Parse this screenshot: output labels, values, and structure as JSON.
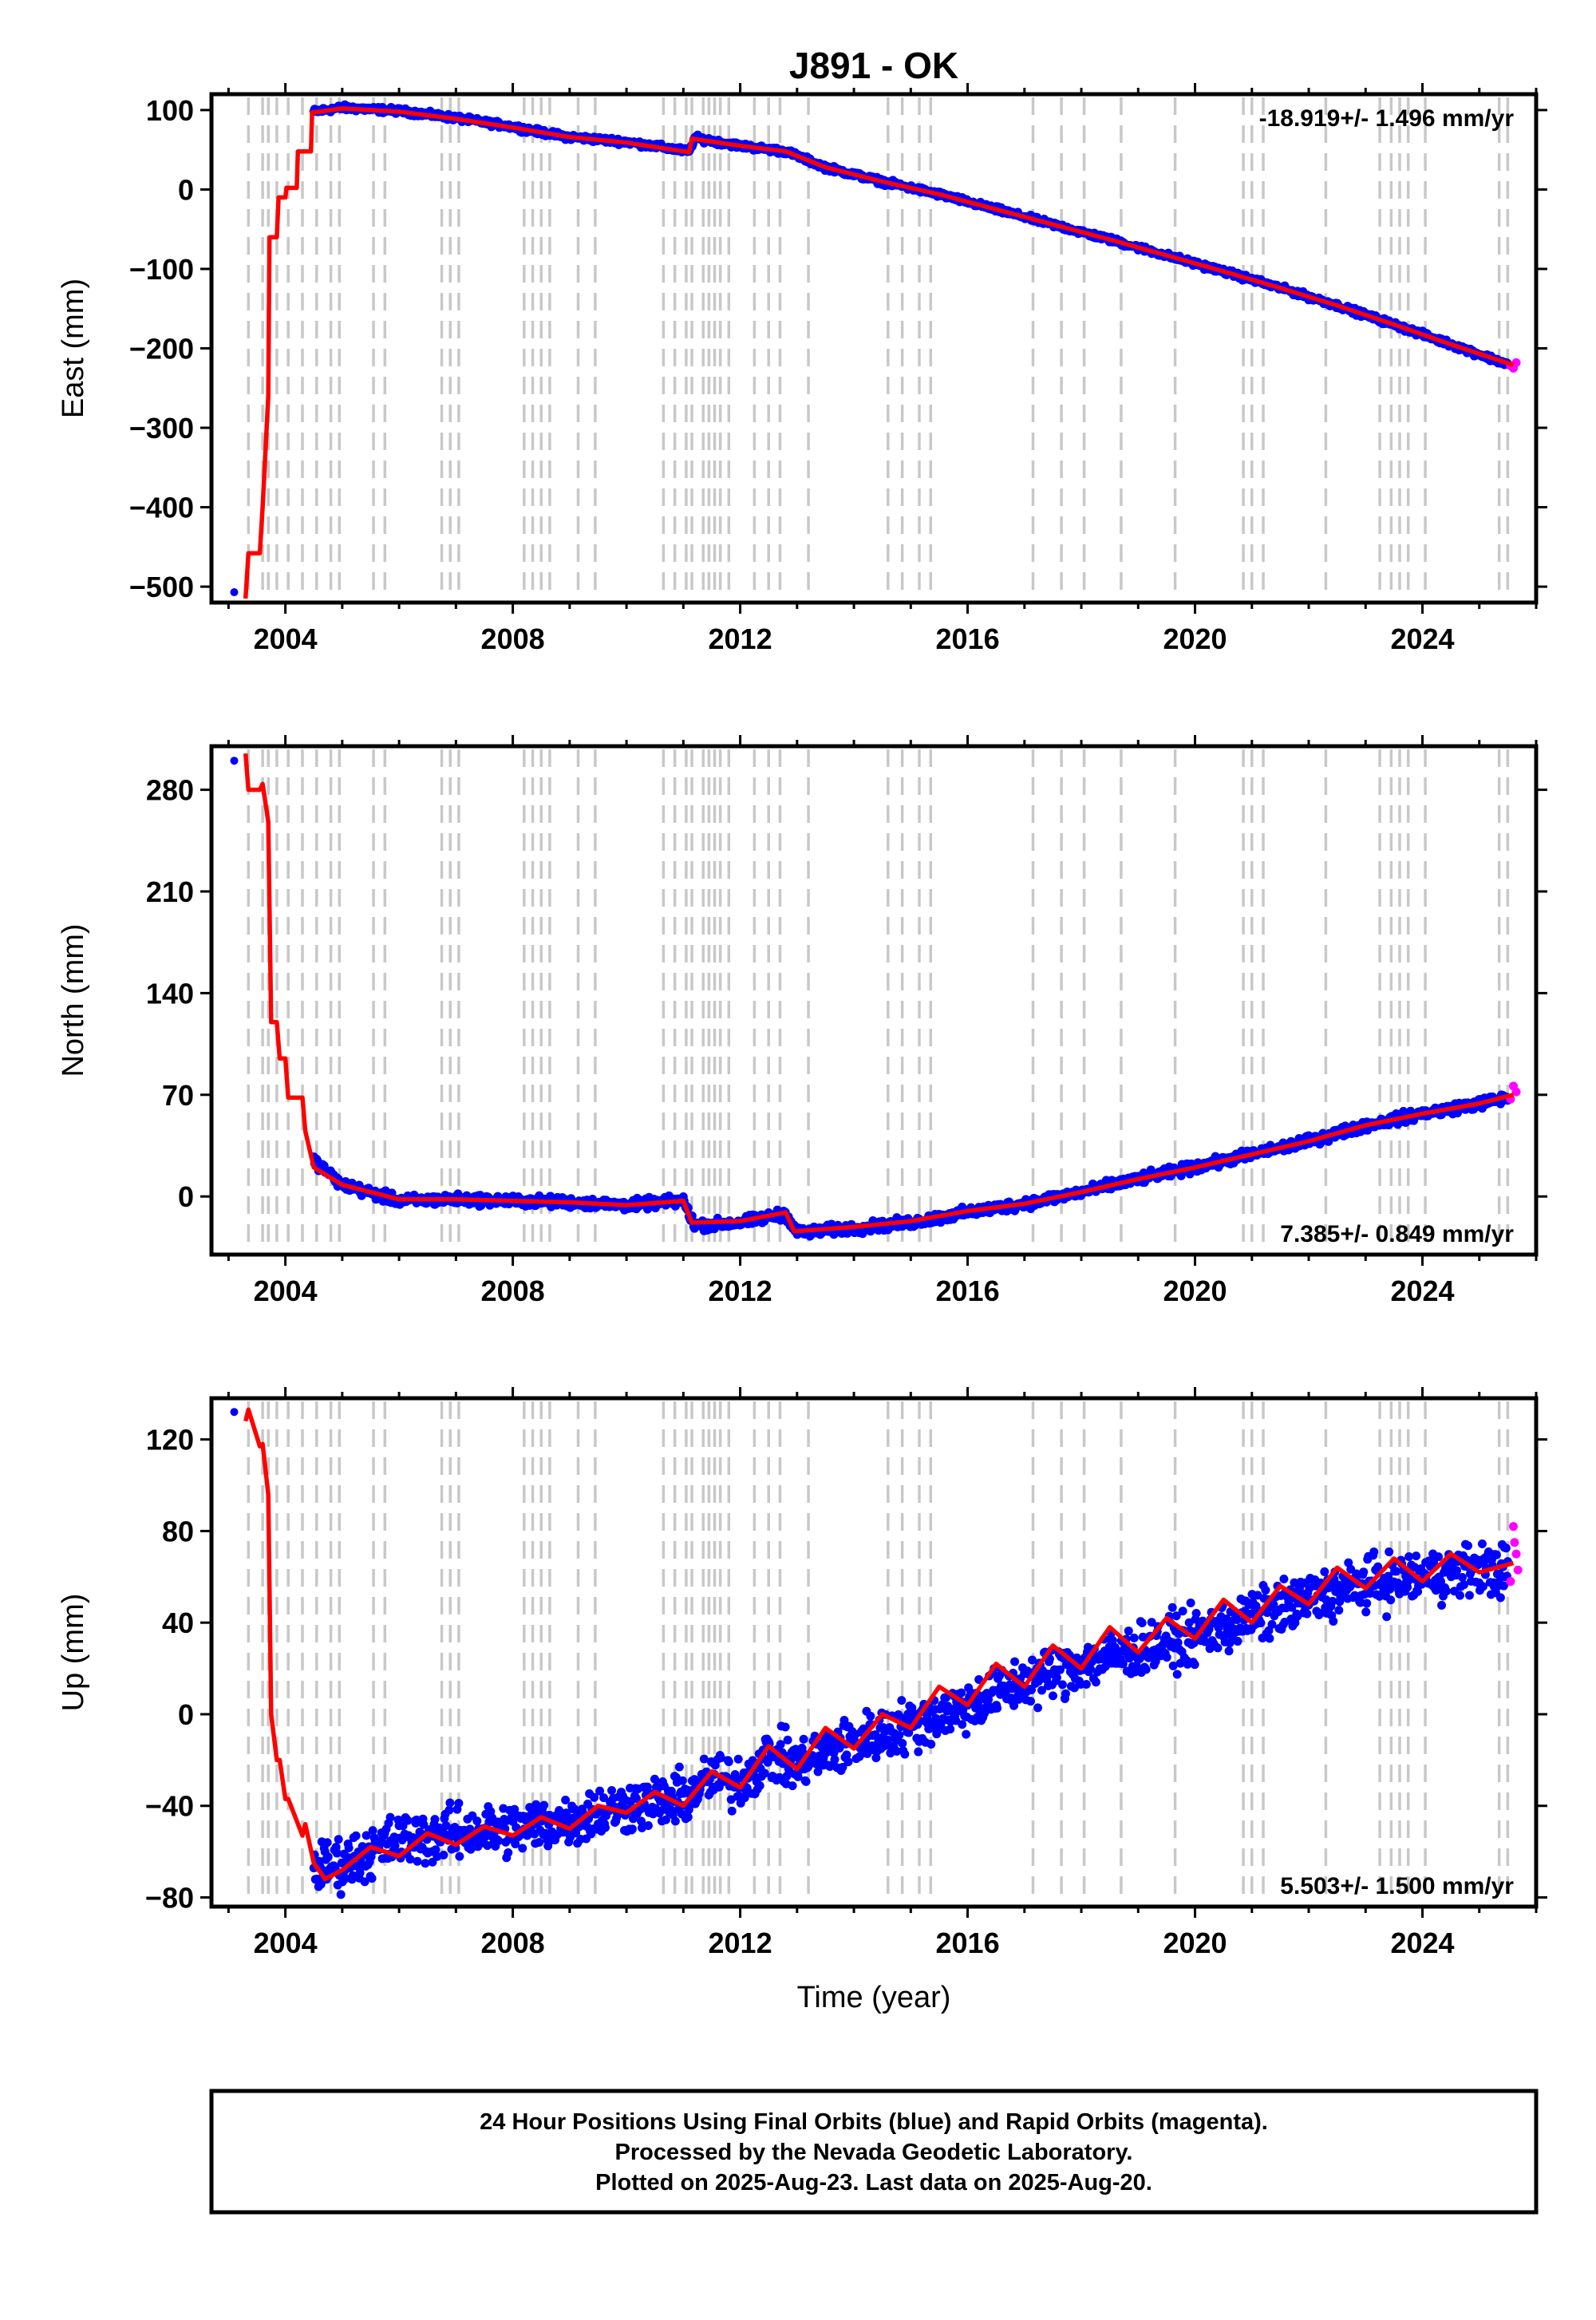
{
  "title": "J891 - OK",
  "xlabel": "Time (year)",
  "caption": {
    "line1": "24 Hour Positions Using Final Orbits (blue) and Rapid Orbits (magenta).",
    "line2": "Processed by the Nevada Geodetic Laboratory.",
    "line3": "Plotted on 2025-Aug-23. Last data on 2025-Aug-20."
  },
  "colors": {
    "final_orbits": "#0000ff",
    "rapid_orbits": "#ff00ff",
    "model": "#ff0000",
    "event_lines": "#c8c8c8",
    "frame": "#000000"
  },
  "chart_data": [
    {
      "type": "scatter",
      "component": "east",
      "ylabel": "East (mm)",
      "rate_text": "-18.919+/- 1.496 mm/yr",
      "rate_position": "top-right",
      "xlim": [
        2002.7,
        2026.0
      ],
      "ylim": [
        -520,
        120
      ],
      "x_ticks": [
        2004,
        2008,
        2012,
        2016,
        2020,
        2024
      ],
      "y_ticks": [
        100,
        0,
        -100,
        -200,
        -300,
        -400,
        -500
      ],
      "series": [
        {
          "name": "Final Orbits",
          "color": "#0000ff",
          "style": "dots",
          "x": [
            2003.1,
            2004.5,
            2005.0,
            2006.0,
            2007.0,
            2008.0,
            2008.5,
            2009.0,
            2010.0,
            2011.1,
            2011.2,
            2012.0,
            2012.8,
            2013.5,
            2014.5,
            2015.5,
            2016.5,
            2017.5,
            2018.5,
            2019.5,
            2020.5,
            2021.5,
            2022.5,
            2023.5,
            2024.5,
            2025.5
          ],
          "y": [
            -507,
            98,
            103,
            99,
            90,
            79,
            72,
            66,
            60,
            48,
            65,
            55,
            48,
            28,
            10,
            -6,
            -25,
            -44,
            -63,
            -83,
            -103,
            -124,
            -146,
            -170,
            -195,
            -220
          ]
        },
        {
          "name": "Rapid Orbits",
          "color": "#ff00ff",
          "style": "dots",
          "x": [
            2025.55,
            2025.6,
            2025.65
          ],
          "y": [
            -222,
            -225,
            -218
          ]
        },
        {
          "name": "Model",
          "color": "#ff0000",
          "style": "line",
          "x": [
            2003.3,
            2003.35,
            2003.55,
            2003.6,
            2003.7,
            2003.72,
            2003.85,
            2003.88,
            2004.0,
            2004.02,
            2004.2,
            2004.22,
            2004.45,
            2004.47,
            2004.6,
            2005.0,
            2006.0,
            2007.0,
            2008.0,
            2009.0,
            2010.0,
            2011.1,
            2011.15,
            2012.0,
            2012.8,
            2013.5,
            2014.5,
            2015.5,
            2016.5,
            2017.5,
            2018.5,
            2019.5,
            2020.5,
            2021.5,
            2022.5,
            2023.5,
            2024.5,
            2025.6
          ],
          "y": [
            -515,
            -458,
            -458,
            -400,
            -260,
            -60,
            -60,
            -10,
            -10,
            2,
            2,
            48,
            48,
            97,
            98,
            102,
            98,
            89,
            78,
            66,
            59,
            47,
            64,
            55,
            48,
            28,
            10,
            -6,
            -25,
            -44,
            -63,
            -83,
            -103,
            -124,
            -146,
            -170,
            -195,
            -221
          ]
        }
      ]
    },
    {
      "type": "scatter",
      "component": "north",
      "ylabel": "North (mm)",
      "rate_text": "7.385+/- 0.849 mm/yr",
      "rate_position": "bottom-right",
      "xlim": [
        2002.7,
        2026.0
      ],
      "ylim": [
        -40,
        310
      ],
      "x_ticks": [
        2004,
        2008,
        2012,
        2016,
        2020,
        2024
      ],
      "y_ticks": [
        280,
        210,
        140,
        70,
        0
      ],
      "series": [
        {
          "name": "Final Orbits",
          "color": "#0000ff",
          "style": "dots",
          "x": [
            2003.1,
            2004.5,
            2005.0,
            2006.0,
            2007.0,
            2008.0,
            2009.0,
            2010.0,
            2011.0,
            2011.2,
            2012.0,
            2012.8,
            2013.0,
            2014.0,
            2015.0,
            2016.0,
            2017.0,
            2018.0,
            2019.0,
            2020.0,
            2021.0,
            2022.0,
            2023.0,
            2024.0,
            2025.0,
            2025.5
          ],
          "y": [
            300,
            25,
            8,
            -3,
            -2,
            -3,
            -4,
            -6,
            -3,
            -20,
            -18,
            -12,
            -25,
            -22,
            -18,
            -11,
            -5,
            3,
            12,
            20,
            29,
            38,
            49,
            57,
            64,
            68
          ]
        },
        {
          "name": "Rapid Orbits",
          "color": "#ff00ff",
          "style": "dots",
          "x": [
            2025.55,
            2025.6,
            2025.65
          ],
          "y": [
            67,
            76,
            72
          ]
        },
        {
          "name": "Model",
          "color": "#ff0000",
          "style": "line",
          "x": [
            2003.3,
            2003.35,
            2003.55,
            2003.6,
            2003.7,
            2003.75,
            2003.85,
            2003.9,
            2004.0,
            2004.05,
            2004.3,
            2004.35,
            2004.5,
            2005.0,
            2006.0,
            2007.0,
            2008.0,
            2009.0,
            2010.0,
            2011.0,
            2011.15,
            2012.0,
            2012.8,
            2012.95,
            2014.0,
            2015.0,
            2016.0,
            2017.0,
            2018.0,
            2019.0,
            2020.0,
            2021.0,
            2022.0,
            2023.0,
            2024.0,
            2025.0,
            2025.6
          ],
          "y": [
            305,
            280,
            280,
            284,
            258,
            120,
            120,
            95,
            95,
            68,
            68,
            45,
            20,
            8,
            -2,
            -2,
            -3,
            -4,
            -6,
            -3,
            -18,
            -17,
            -11,
            -24,
            -21,
            -17,
            -10,
            -5,
            3,
            12,
            20,
            29,
            38,
            49,
            57,
            64,
            70
          ]
        }
      ]
    },
    {
      "type": "scatter",
      "component": "up",
      "ylabel": "Up (mm)",
      "rate_text": "5.503+/- 1.500 mm/yr",
      "rate_position": "bottom-right",
      "xlim": [
        2002.7,
        2026.0
      ],
      "ylim": [
        -84,
        138
      ],
      "x_ticks": [
        2004,
        2008,
        2012,
        2016,
        2020,
        2024
      ],
      "y_ticks": [
        120,
        80,
        40,
        0,
        -40,
        -80
      ],
      "series": [
        {
          "name": "Final Orbits",
          "color": "#0000ff",
          "style": "dots",
          "scatter_mm": 8,
          "x": [
            2003.1,
            2004.5,
            2005.0,
            2006.0,
            2007.0,
            2008.0,
            2009.0,
            2010.0,
            2011.0,
            2011.5,
            2012.0,
            2012.5,
            2013.0,
            2014.0,
            2015.0,
            2016.0,
            2017.0,
            2018.0,
            2019.0,
            2020.0,
            2021.0,
            2022.0,
            2023.0,
            2024.0,
            2025.0,
            2025.5
          ],
          "y": [
            132,
            -68,
            -65,
            -55,
            -52,
            -50,
            -46,
            -40,
            -37,
            -28,
            -30,
            -18,
            -22,
            -12,
            -5,
            4,
            14,
            22,
            28,
            34,
            42,
            50,
            57,
            60,
            64,
            62
          ]
        },
        {
          "name": "Rapid Orbits",
          "color": "#ff00ff",
          "style": "dots",
          "x": [
            2025.55,
            2025.6,
            2025.62,
            2025.65,
            2025.68
          ],
          "y": [
            58,
            82,
            75,
            70,
            63
          ]
        },
        {
          "name": "Model",
          "color": "#ff0000",
          "style": "line",
          "x": [
            2003.3,
            2003.35,
            2003.55,
            2003.6,
            2003.7,
            2003.75,
            2003.85,
            2003.9,
            2004.0,
            2004.05,
            2004.3,
            2004.35,
            2004.5,
            2004.7,
            2005.0,
            2005.5,
            2006.0,
            2006.5,
            2007.0,
            2007.5,
            2008.0,
            2008.5,
            2009.0,
            2009.5,
            2010.0,
            2010.5,
            2011.0,
            2011.5,
            2012.0,
            2012.5,
            2013.0,
            2013.5,
            2014.0,
            2014.5,
            2015.0,
            2015.5,
            2016.0,
            2016.5,
            2017.0,
            2017.5,
            2018.0,
            2018.5,
            2019.0,
            2019.5,
            2020.0,
            2020.5,
            2021.0,
            2021.5,
            2022.0,
            2022.5,
            2023.0,
            2023.5,
            2024.0,
            2024.5,
            2025.0,
            2025.6
          ],
          "y": [
            128,
            133,
            117,
            118,
            96,
            0,
            -20,
            -20,
            -37,
            -37,
            -53,
            -48,
            -65,
            -72,
            -68,
            -58,
            -62,
            -52,
            -57,
            -49,
            -53,
            -45,
            -50,
            -40,
            -43,
            -34,
            -40,
            -25,
            -32,
            -14,
            -24,
            -6,
            -15,
            0,
            -6,
            12,
            4,
            22,
            12,
            30,
            20,
            38,
            27,
            42,
            33,
            50,
            40,
            56,
            48,
            64,
            55,
            68,
            58,
            70,
            62,
            66
          ]
        }
      ]
    }
  ],
  "event_lines_years": [
    2003.35,
    2003.6,
    2003.7,
    2003.85,
    2004.05,
    2004.3,
    2004.55,
    2004.8,
    2004.95,
    2005.55,
    2005.75,
    2006.75,
    2006.9,
    2007.05,
    2008.2,
    2008.35,
    2008.5,
    2008.65,
    2009.15,
    2009.45,
    2010.65,
    2010.85,
    2011.05,
    2011.15,
    2011.35,
    2011.45,
    2011.55,
    2011.65,
    2011.8,
    2012.25,
    2012.5,
    2012.7,
    2013.2,
    2014.6,
    2014.85,
    2015.15,
    2015.35,
    2017.15,
    2017.65,
    2018.05,
    2018.7,
    2019.65,
    2020.85,
    2021.0,
    2021.2,
    2022.3,
    2023.25,
    2023.45,
    2023.6,
    2023.75,
    2024.05,
    2025.35,
    2025.5
  ]
}
